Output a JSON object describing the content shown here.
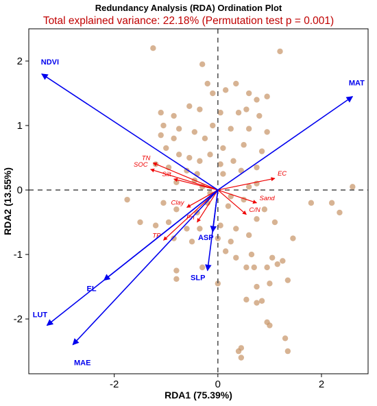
{
  "colors": {
    "title": "#000000",
    "subtitle": "#c00000",
    "site_point": "#c8956a",
    "env_arrow": "#0000ee",
    "soil_arrow": "#ee0000",
    "zero_line": "#555555",
    "frame": "#000000"
  },
  "chart_data": {
    "type": "scatter",
    "title": "Redundancy Analysis (RDA) Ordination Plot",
    "subtitle": "Total explained variance: 22.18% (Permutation test p = 0.001)",
    "xlabel": "RDA1 (75.39%)",
    "ylabel": "RDA2 (13.55%)",
    "xlim": [
      -3.65,
      2.9
    ],
    "ylim": [
      -2.85,
      2.5
    ],
    "x_ticks": [
      "-2",
      "0",
      "2"
    ],
    "x_tick_values": [
      -2,
      0,
      2
    ],
    "y_ticks": [
      "2",
      "1",
      "0",
      "-1",
      "-2"
    ],
    "y_tick_values": [
      2,
      1,
      0,
      -1,
      -2
    ],
    "grid": false,
    "zero_lines": true,
    "env_arrows": [
      {
        "label": "NDVI",
        "x": -3.4,
        "y": 1.8
      },
      {
        "label": "MAT",
        "x": 2.6,
        "y": 1.45
      },
      {
        "label": "LUT",
        "x": -3.3,
        "y": -2.1
      },
      {
        "label": "MAE",
        "x": -2.8,
        "y": -2.4
      },
      {
        "label": "EL",
        "x": -2.2,
        "y": -1.4
      },
      {
        "label": "ASP",
        "x": -0.1,
        "y": -0.65
      },
      {
        "label": "SLP",
        "x": -0.2,
        "y": -1.25
      }
    ],
    "soil_arrows": [
      {
        "label": "TN",
        "x": -1.25,
        "y": 0.42
      },
      {
        "label": "SOC",
        "x": -1.3,
        "y": 0.32
      },
      {
        "label": "Silt",
        "x": -0.85,
        "y": 0.17
      },
      {
        "label": "Clay",
        "x": -0.6,
        "y": -0.27
      },
      {
        "label": "TP",
        "x": -1.05,
        "y": -0.78
      },
      {
        "label": "Pn",
        "x": -0.4,
        "y": -0.5
      },
      {
        "label": "EC",
        "x": 1.1,
        "y": 0.18
      },
      {
        "label": "Sand",
        "x": 0.75,
        "y": -0.2
      },
      {
        "label": "C/N",
        "x": 0.55,
        "y": -0.38
      }
    ],
    "points": [
      [
        -1.25,
        2.2
      ],
      [
        1.2,
        2.15
      ],
      [
        -0.3,
        1.95
      ],
      [
        -0.2,
        1.65
      ],
      [
        0.35,
        1.65
      ],
      [
        -0.1,
        1.5
      ],
      [
        0.15,
        1.55
      ],
      [
        0.6,
        1.5
      ],
      [
        0.75,
        1.4
      ],
      [
        0.95,
        1.45
      ],
      [
        -1.1,
        1.2
      ],
      [
        -0.85,
        1.15
      ],
      [
        -0.55,
        1.3
      ],
      [
        -0.35,
        1.25
      ],
      [
        0.05,
        1.2
      ],
      [
        0.4,
        1.2
      ],
      [
        0.55,
        1.25
      ],
      [
        0.8,
        1.15
      ],
      [
        -1.05,
        1.0
      ],
      [
        -0.75,
        0.95
      ],
      [
        -0.45,
        0.9
      ],
      [
        -0.1,
        1.0
      ],
      [
        0.25,
        0.95
      ],
      [
        0.6,
        0.95
      ],
      [
        0.95,
        0.9
      ],
      [
        -1.1,
        0.85
      ],
      [
        -0.85,
        0.8
      ],
      [
        -0.25,
        0.8
      ],
      [
        0.1,
        0.65
      ],
      [
        0.5,
        0.7
      ],
      [
        0.85,
        0.6
      ],
      [
        -1.0,
        0.65
      ],
      [
        -0.75,
        0.55
      ],
      [
        -0.55,
        0.5
      ],
      [
        -0.35,
        0.45
      ],
      [
        -0.15,
        0.55
      ],
      [
        0.05,
        0.4
      ],
      [
        0.3,
        0.45
      ],
      [
        0.75,
        0.35
      ],
      [
        -1.2,
        0.4
      ],
      [
        -0.95,
        0.35
      ],
      [
        -0.6,
        0.3
      ],
      [
        -0.4,
        0.25
      ],
      [
        -0.8,
        0.12
      ],
      [
        -0.45,
        0.15
      ],
      [
        0.1,
        0.25
      ],
      [
        0.45,
        0.3
      ],
      [
        0.75,
        0.1
      ],
      [
        -0.3,
        0.05
      ],
      [
        -0.15,
        -0.05
      ],
      [
        0.25,
        -0.1
      ],
      [
        0.6,
        0.05
      ],
      [
        -1.75,
        -0.15
      ],
      [
        -1.05,
        -0.2
      ],
      [
        -0.8,
        -0.3
      ],
      [
        -0.4,
        -0.35
      ],
      [
        -0.2,
        -0.2
      ],
      [
        0.2,
        -0.25
      ],
      [
        0.5,
        -0.15
      ],
      [
        0.9,
        -0.3
      ],
      [
        1.1,
        -0.5
      ],
      [
        -1.5,
        -0.5
      ],
      [
        -1.2,
        -0.55
      ],
      [
        -0.95,
        -0.5
      ],
      [
        -0.6,
        -0.6
      ],
      [
        -0.35,
        -0.6
      ],
      [
        0.05,
        -0.55
      ],
      [
        0.35,
        -0.6
      ],
      [
        0.75,
        -0.45
      ],
      [
        -0.85,
        -0.75
      ],
      [
        -0.5,
        -0.8
      ],
      [
        0.0,
        -0.75
      ],
      [
        0.25,
        -0.8
      ],
      [
        0.6,
        -0.7
      ],
      [
        1.45,
        -0.75
      ],
      [
        0.15,
        -0.95
      ],
      [
        0.35,
        -1.05
      ],
      [
        0.65,
        -1.0
      ],
      [
        1.05,
        -1.05
      ],
      [
        1.25,
        -1.1
      ],
      [
        -0.8,
        -1.25
      ],
      [
        -0.3,
        -1.2
      ],
      [
        0.55,
        -1.2
      ],
      [
        0.7,
        -1.2
      ],
      [
        0.95,
        -1.2
      ],
      [
        1.15,
        -1.15
      ],
      [
        -0.8,
        -1.38
      ],
      [
        0.0,
        -1.45
      ],
      [
        0.75,
        -1.5
      ],
      [
        1.0,
        -1.45
      ],
      [
        1.35,
        -1.4
      ],
      [
        0.55,
        -1.7
      ],
      [
        0.75,
        -1.75
      ],
      [
        0.85,
        -1.72
      ],
      [
        0.95,
        -2.05
      ],
      [
        1.0,
        -2.1
      ],
      [
        1.3,
        -2.3
      ],
      [
        0.45,
        -2.45
      ],
      [
        0.4,
        -2.5
      ],
      [
        1.35,
        -2.5
      ],
      [
        0.45,
        -2.6
      ],
      [
        2.2,
        -0.2
      ],
      [
        2.35,
        -0.35
      ],
      [
        2.6,
        0.05
      ],
      [
        1.8,
        -0.2
      ]
    ]
  }
}
